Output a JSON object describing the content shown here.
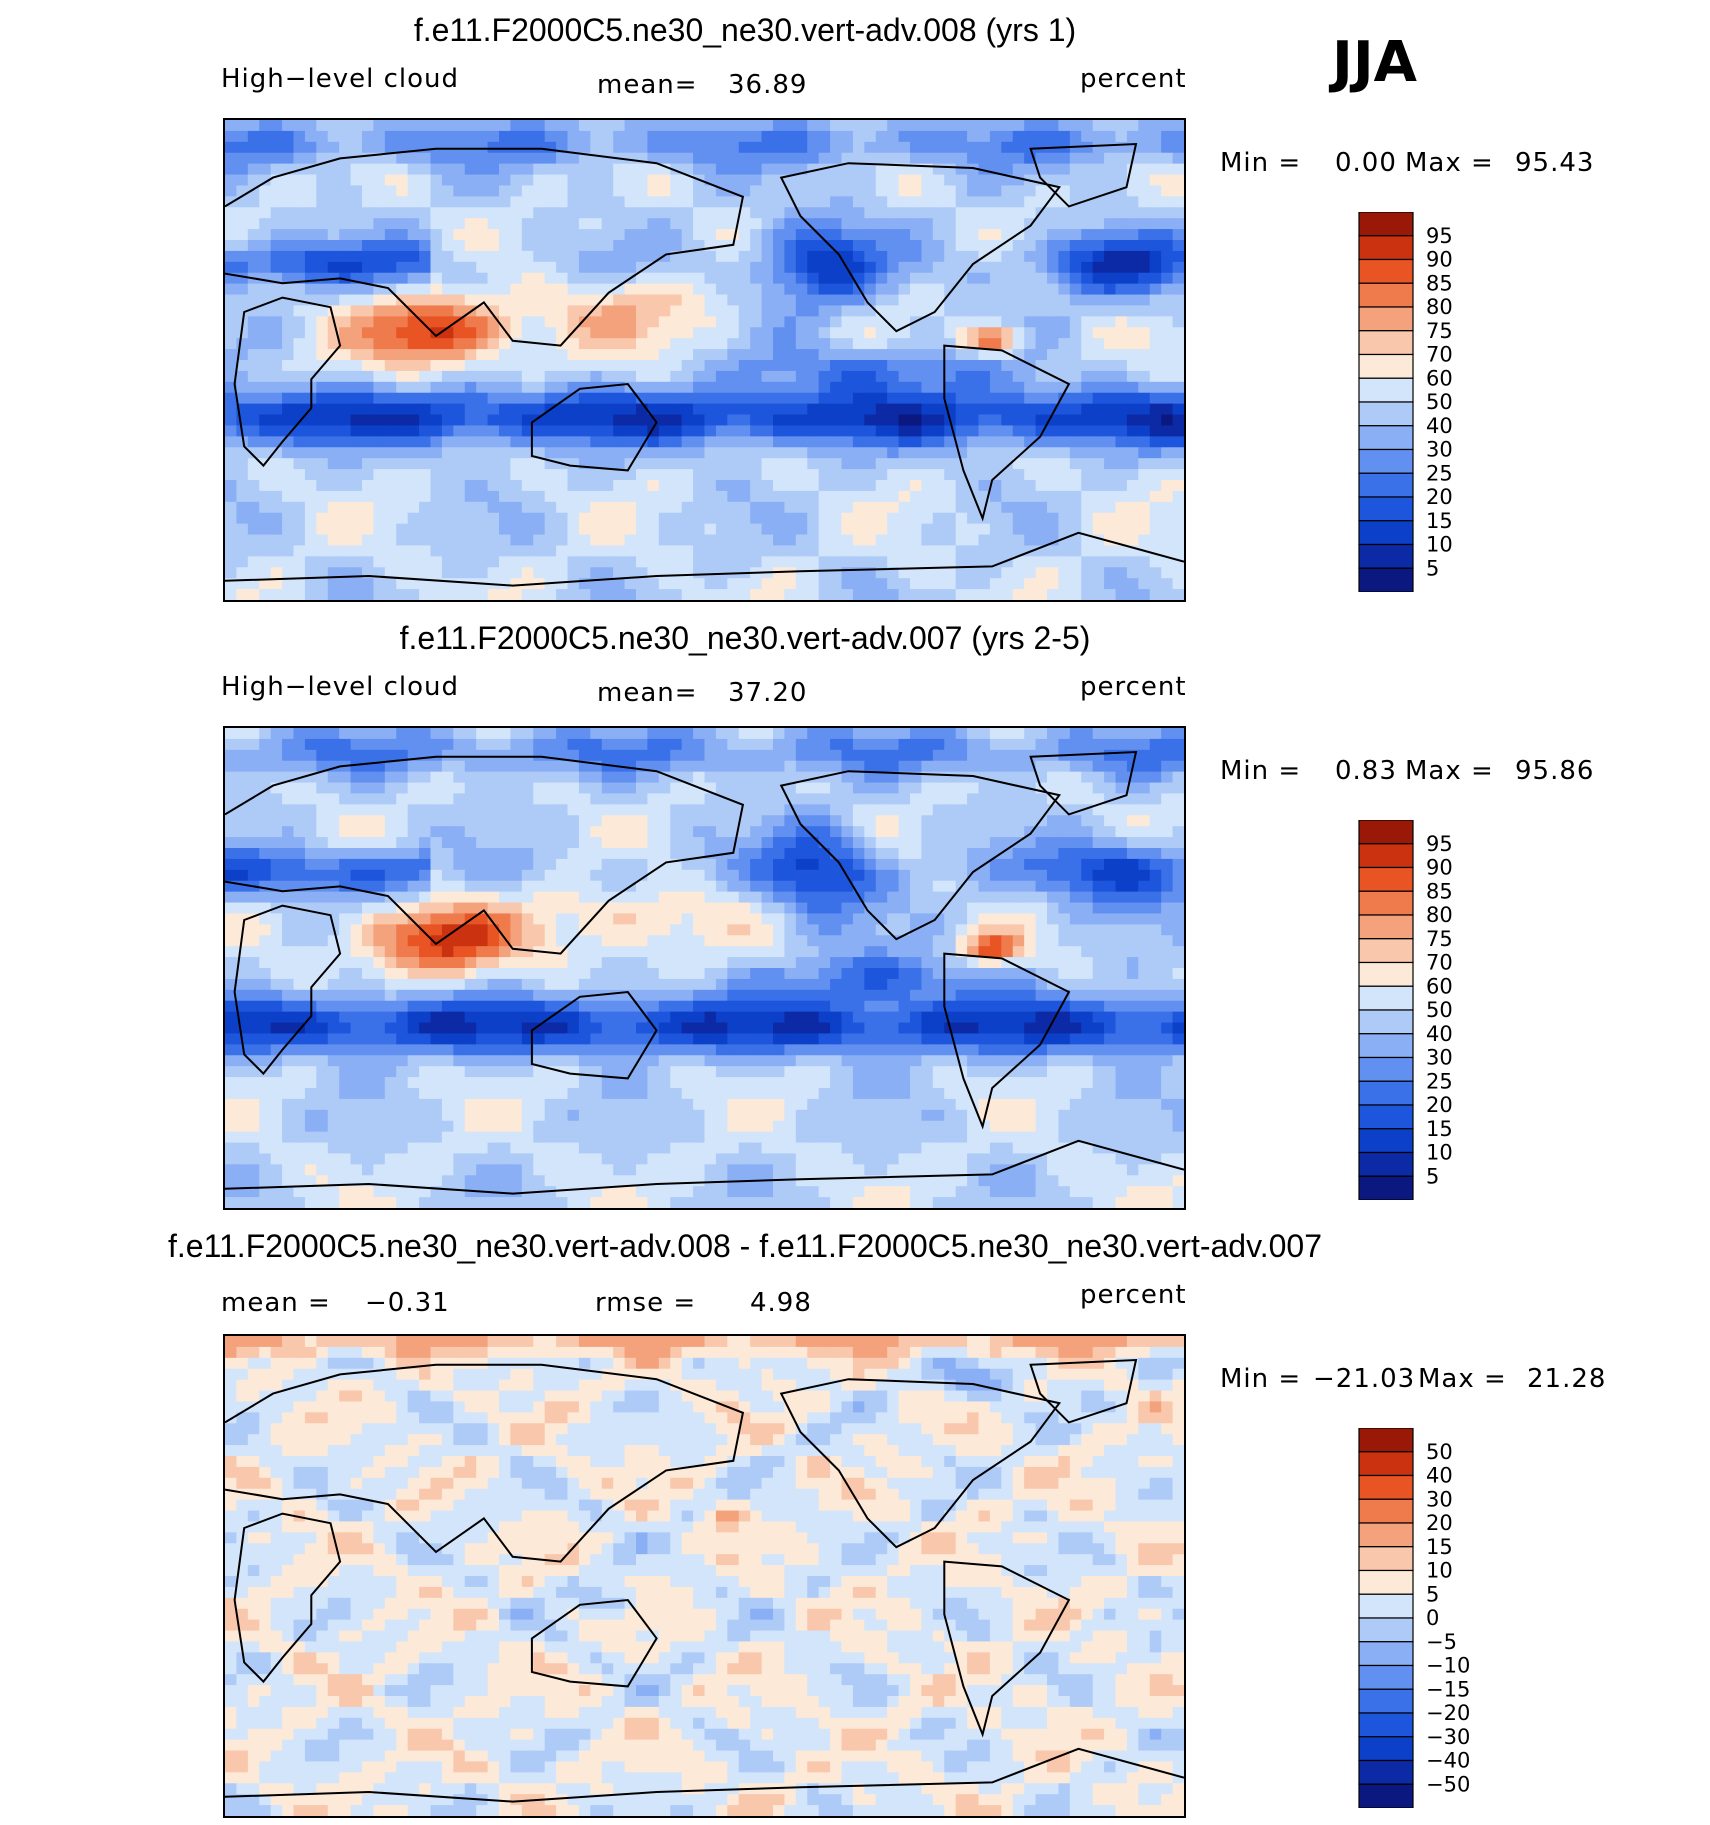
{
  "season": "JJA",
  "palettes": {
    "abs": [
      "#0a1880",
      "#0c2aa6",
      "#0d40c8",
      "#1d56dc",
      "#3a70e8",
      "#6190f0",
      "#8aaff5",
      "#aecbf8",
      "#d2e5fb",
      "#fde9d8",
      "#f8c7ac",
      "#f3a27c",
      "#ef7b4c",
      "#e85424",
      "#cb3210",
      "#9a1808"
    ],
    "diff": [
      "#0a1880",
      "#0c2aa6",
      "#0d40c8",
      "#1d56dc",
      "#3a70e8",
      "#6190f0",
      "#8aaff5",
      "#aecbf8",
      "#d2e5fb",
      "#fde9d8",
      "#f8c7ac",
      "#f3a27c",
      "#ef7b4c",
      "#e85424",
      "#cb3210",
      "#9a1808"
    ],
    "coast": "#000000"
  },
  "chart_data": [
    {
      "type": "heatmap",
      "title": "f.e11.F2000C5.ne30_ne30.vert-adv.008 (yrs 1)",
      "left_label": "High−level cloud",
      "stat_label": "mean=",
      "stat_value": "36.89",
      "units": "percent",
      "min_label": "Min =",
      "min_value": "0.00",
      "max_label": "Max =",
      "max_value": "95.43",
      "colorbar_levels": [
        "95",
        "90",
        "85",
        "80",
        "75",
        "70",
        "60",
        "50",
        "40",
        "30",
        "25",
        "20",
        "15",
        "10",
        "5"
      ]
    },
    {
      "type": "heatmap",
      "title": "f.e11.F2000C5.ne30_ne30.vert-adv.007 (yrs 2-5)",
      "left_label": "High−level cloud",
      "stat_label": "mean=",
      "stat_value": "37.20",
      "units": "percent",
      "min_label": "Min =",
      "min_value": "0.83",
      "max_label": "Max =",
      "max_value": "95.86",
      "colorbar_levels": [
        "95",
        "90",
        "85",
        "80",
        "75",
        "70",
        "60",
        "50",
        "40",
        "30",
        "25",
        "20",
        "15",
        "10",
        "5"
      ]
    },
    {
      "type": "heatmap",
      "title": "f.e11.F2000C5.ne30_ne30.vert-adv.008 - f.e11.F2000C5.ne30_ne30.vert-adv.007",
      "left_label": "mean =",
      "left_value": "−0.31",
      "stat_label": "rmse =",
      "stat_value": "4.98",
      "units": "percent",
      "min_label": "Min =",
      "min_value": "−21.03",
      "max_label": "Max =",
      "max_value": "21.28",
      "colorbar_levels": [
        "50",
        "40",
        "30",
        "20",
        "15",
        "10",
        "5",
        "0",
        "−5",
        "−10",
        "−15",
        "−20",
        "−30",
        "−40",
        "−50"
      ]
    }
  ]
}
